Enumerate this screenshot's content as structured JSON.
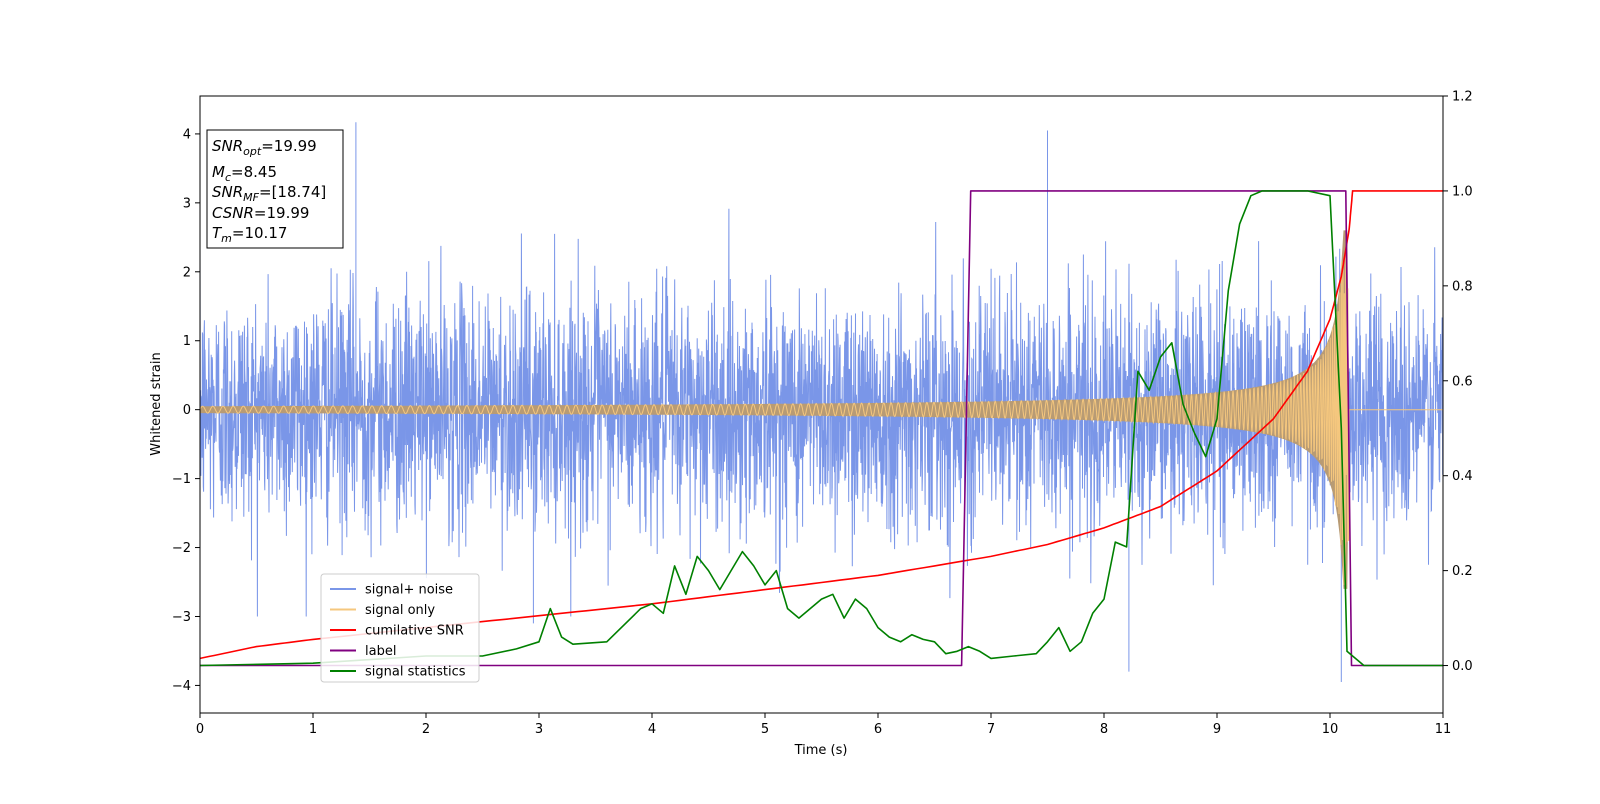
{
  "chart_data": {
    "type": "line",
    "xlabel": "Time (s)",
    "ylabel": "Whitened strain",
    "xlim": [
      0,
      11
    ],
    "ylim": [
      -4.4,
      4.55
    ],
    "ylim_right": [
      -0.1,
      1.2
    ],
    "x_ticks": [
      "0",
      "1",
      "2",
      "3",
      "4",
      "5",
      "6",
      "7",
      "8",
      "9",
      "10",
      "11"
    ],
    "y_ticks": [
      "−4",
      "−3",
      "−2",
      "−1",
      "0",
      "1",
      "2",
      "3",
      "4"
    ],
    "y_ticks_right": [
      "0.0",
      "0.2",
      "0.4",
      "0.6",
      "0.8",
      "1.0",
      "1.2"
    ],
    "grid": false,
    "legend_position": "lower-left",
    "annotation": {
      "snr_opt": {
        "sym": "SNR",
        "sub": "opt",
        "value": "=19.99"
      },
      "mc": {
        "sym": "M",
        "sub": "c",
        "value": "=8.45"
      },
      "snr_mf": {
        "sym": "SNR",
        "sub": "MF",
        "value": "=[18.74]"
      },
      "csnr": {
        "sym": "CSNR",
        "value": "=19.99"
      },
      "tm": {
        "sym": "T",
        "sub": "m",
        "value": "=10.17"
      }
    },
    "series": [
      {
        "name": "signal+ noise",
        "axis": "left",
        "color": "#7a96e8",
        "description_values": {
          "noise_sigma": 0.85,
          "typical_range": [
            -2.5,
            2.5
          ],
          "spikes": [
            [
              1.38,
              4.17
            ],
            [
              7.5,
              4.05
            ],
            [
              10.1,
              -3.95
            ],
            [
              8.22,
              -3.8
            ],
            [
              2.95,
              -3.1
            ]
          ]
        }
      },
      {
        "name": "signal only",
        "axis": "left",
        "color": "#f5c77e",
        "chirp_start_amplitude": 0.05,
        "chirp_end_amplitude": 2.6,
        "merger_time": 10.17
      },
      {
        "name": "cumilative SNR",
        "axis": "right",
        "color": "#ff0000",
        "x": [
          0,
          0.5,
          1,
          2,
          3,
          4,
          5,
          6,
          7,
          7.5,
          8,
          8.5,
          9,
          9.5,
          9.8,
          10.0,
          10.1,
          10.17,
          10.2,
          11
        ],
        "values": [
          0.015,
          0.04,
          0.055,
          0.08,
          0.105,
          0.13,
          0.16,
          0.19,
          0.23,
          0.255,
          0.29,
          0.335,
          0.41,
          0.52,
          0.62,
          0.73,
          0.82,
          0.92,
          1.0,
          1.0
        ]
      },
      {
        "name": "label",
        "axis": "right",
        "color": "#800080",
        "x": [
          0,
          6.74,
          6.82,
          10.14,
          10.19,
          11
        ],
        "values": [
          0,
          0,
          1,
          1,
          0,
          0
        ]
      },
      {
        "name": "signal statistics",
        "axis": "right",
        "color": "#008000",
        "x": [
          0,
          1,
          2,
          2.5,
          2.8,
          3.0,
          3.1,
          3.2,
          3.3,
          3.6,
          3.9,
          4.0,
          4.1,
          4.2,
          4.3,
          4.4,
          4.5,
          4.6,
          4.8,
          4.9,
          5.0,
          5.1,
          5.2,
          5.3,
          5.5,
          5.6,
          5.7,
          5.8,
          5.9,
          6.0,
          6.1,
          6.2,
          6.3,
          6.4,
          6.5,
          6.6,
          6.7,
          6.8,
          6.9,
          7.0,
          7.2,
          7.4,
          7.5,
          7.6,
          7.7,
          7.8,
          7.9,
          8.0,
          8.1,
          8.2,
          8.3,
          8.4,
          8.5,
          8.6,
          8.7,
          8.8,
          8.9,
          9.0,
          9.1,
          9.2,
          9.3,
          9.4,
          9.6,
          9.8,
          10.0,
          10.1,
          10.15,
          10.2,
          10.3,
          11
        ],
        "values": [
          0,
          0.005,
          0.02,
          0.02,
          0.035,
          0.05,
          0.12,
          0.06,
          0.045,
          0.05,
          0.12,
          0.13,
          0.11,
          0.21,
          0.15,
          0.23,
          0.2,
          0.16,
          0.24,
          0.21,
          0.17,
          0.2,
          0.12,
          0.1,
          0.14,
          0.15,
          0.1,
          0.14,
          0.12,
          0.08,
          0.06,
          0.05,
          0.065,
          0.055,
          0.05,
          0.025,
          0.03,
          0.04,
          0.03,
          0.015,
          0.02,
          0.025,
          0.05,
          0.08,
          0.03,
          0.05,
          0.11,
          0.14,
          0.26,
          0.25,
          0.62,
          0.58,
          0.65,
          0.68,
          0.55,
          0.49,
          0.44,
          0.52,
          0.79,
          0.93,
          0.99,
          1.0,
          1.0,
          1.0,
          0.99,
          0.5,
          0.03,
          0.02,
          0.0,
          0.0
        ]
      }
    ]
  }
}
